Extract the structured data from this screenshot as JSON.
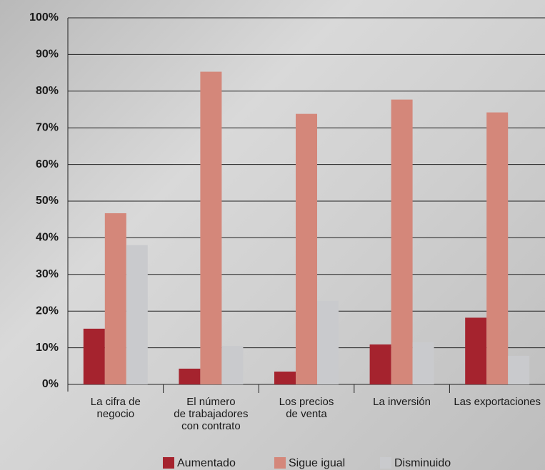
{
  "chart_data": {
    "type": "bar",
    "categories": [
      "La cifra de\nnegocio",
      "El número\nde trabajadores\ncon contrato",
      "Los precios\nde venta",
      "La inversión",
      "Las exportaciones"
    ],
    "series": [
      {
        "name": "Aumentado",
        "color": "#a5232e",
        "values": [
          15.2,
          4.3,
          3.5,
          10.9,
          18.2
        ]
      },
      {
        "name": "Sigue igual",
        "color": "#d4877a",
        "values": [
          46.7,
          85.3,
          73.8,
          77.7,
          74.2
        ]
      },
      {
        "name": "Disminuido",
        "color": "#c9cacd",
        "values": [
          38,
          10.5,
          22.8,
          11.5,
          7.8
        ]
      }
    ],
    "ylim": [
      0,
      100
    ],
    "yticks": [
      {
        "value": 0,
        "label": "0%"
      },
      {
        "value": 10,
        "label": "10%"
      },
      {
        "value": 20,
        "label": "20%"
      },
      {
        "value": 30,
        "label": "30%"
      },
      {
        "value": 40,
        "label": "40%"
      },
      {
        "value": 50,
        "label": "50%"
      },
      {
        "value": 60,
        "label": "60%"
      },
      {
        "value": 70,
        "label": "70%"
      },
      {
        "value": 80,
        "label": "80%"
      },
      {
        "value": 90,
        "label": "90%"
      },
      {
        "value": 100,
        "label": "100%"
      }
    ],
    "grid": true,
    "legend": "bottom"
  }
}
